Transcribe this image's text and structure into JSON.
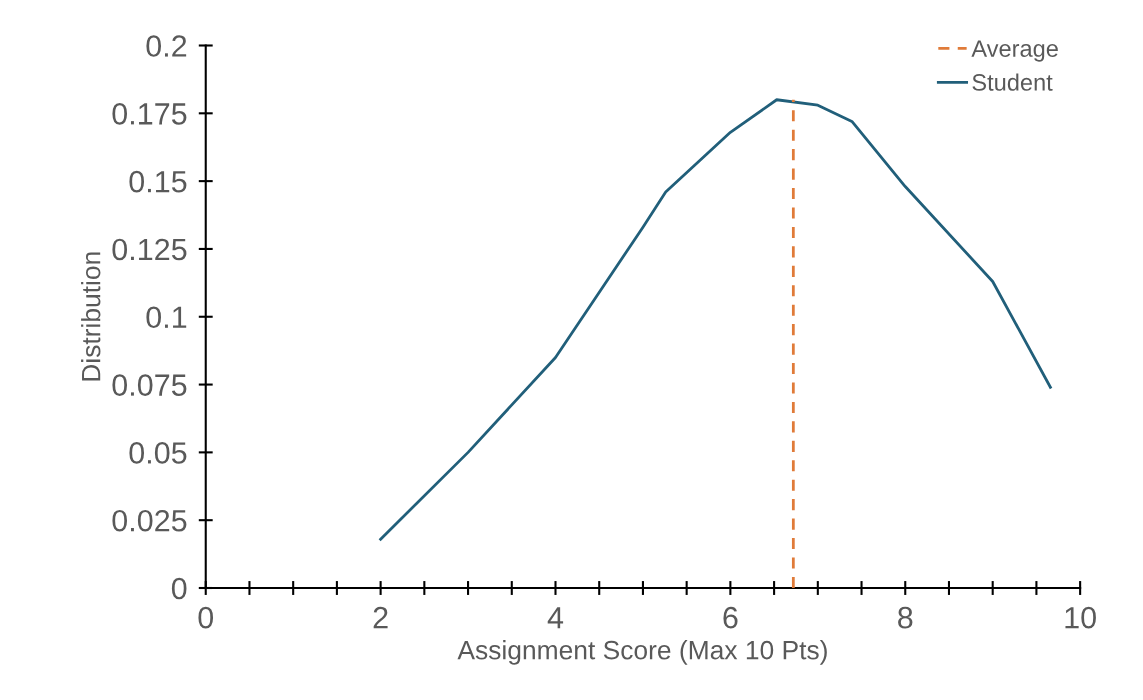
{
  "chart_data": {
    "type": "line",
    "xlabel": "Assignment Score (Max 10 Pts)",
    "ylabel": "Distribution",
    "series": [
      {
        "name": "Average",
        "color": "#e07b39",
        "line_style": "dashed",
        "x": [
          6.72,
          6.72
        ],
        "values": [
          0,
          0.18
        ]
      },
      {
        "name": "Student",
        "color": "#215f7a",
        "line_style": "solid",
        "x": [
          2.0,
          3.0,
          4.0,
          5.0,
          5.26,
          6.0,
          6.53,
          7.0,
          7.39,
          8.0,
          9.0,
          9.66
        ],
        "values": [
          0.018,
          0.05,
          0.085,
          0.133,
          0.146,
          0.168,
          0.18,
          0.178,
          0.172,
          0.148,
          0.113,
          0.074
        ]
      }
    ],
    "xlim": [
      0,
      10
    ],
    "ylim": [
      0,
      0.2
    ],
    "xticks": [
      0,
      {
        "value": 0.5,
        "label": null
      },
      2,
      {
        "value": 1,
        "label": null
      },
      {
        "value": 1.5,
        "label": null
      },
      {
        "value": 2.5,
        "label": null
      },
      {
        "value": 3,
        "label": null
      },
      {
        "value": 3.5,
        "label": null
      },
      4,
      {
        "value": 4.5,
        "label": null
      },
      {
        "value": 5,
        "label": null
      },
      {
        "value": 5.5,
        "label": null
      },
      6,
      {
        "value": 6.5,
        "label": null
      },
      {
        "value": 7,
        "label": null
      },
      {
        "value": 7.5,
        "label": null
      },
      8,
      {
        "value": 8.5,
        "label": null
      },
      {
        "value": 9,
        "label": null
      },
      {
        "value": 9.5,
        "label": null
      },
      10
    ],
    "yticks": [
      0,
      0.025,
      0.05,
      0.075,
      0.1,
      0.125,
      0.15,
      0.175,
      0.2
    ],
    "grid": false,
    "legend": "top right",
    "marker": "none"
  }
}
